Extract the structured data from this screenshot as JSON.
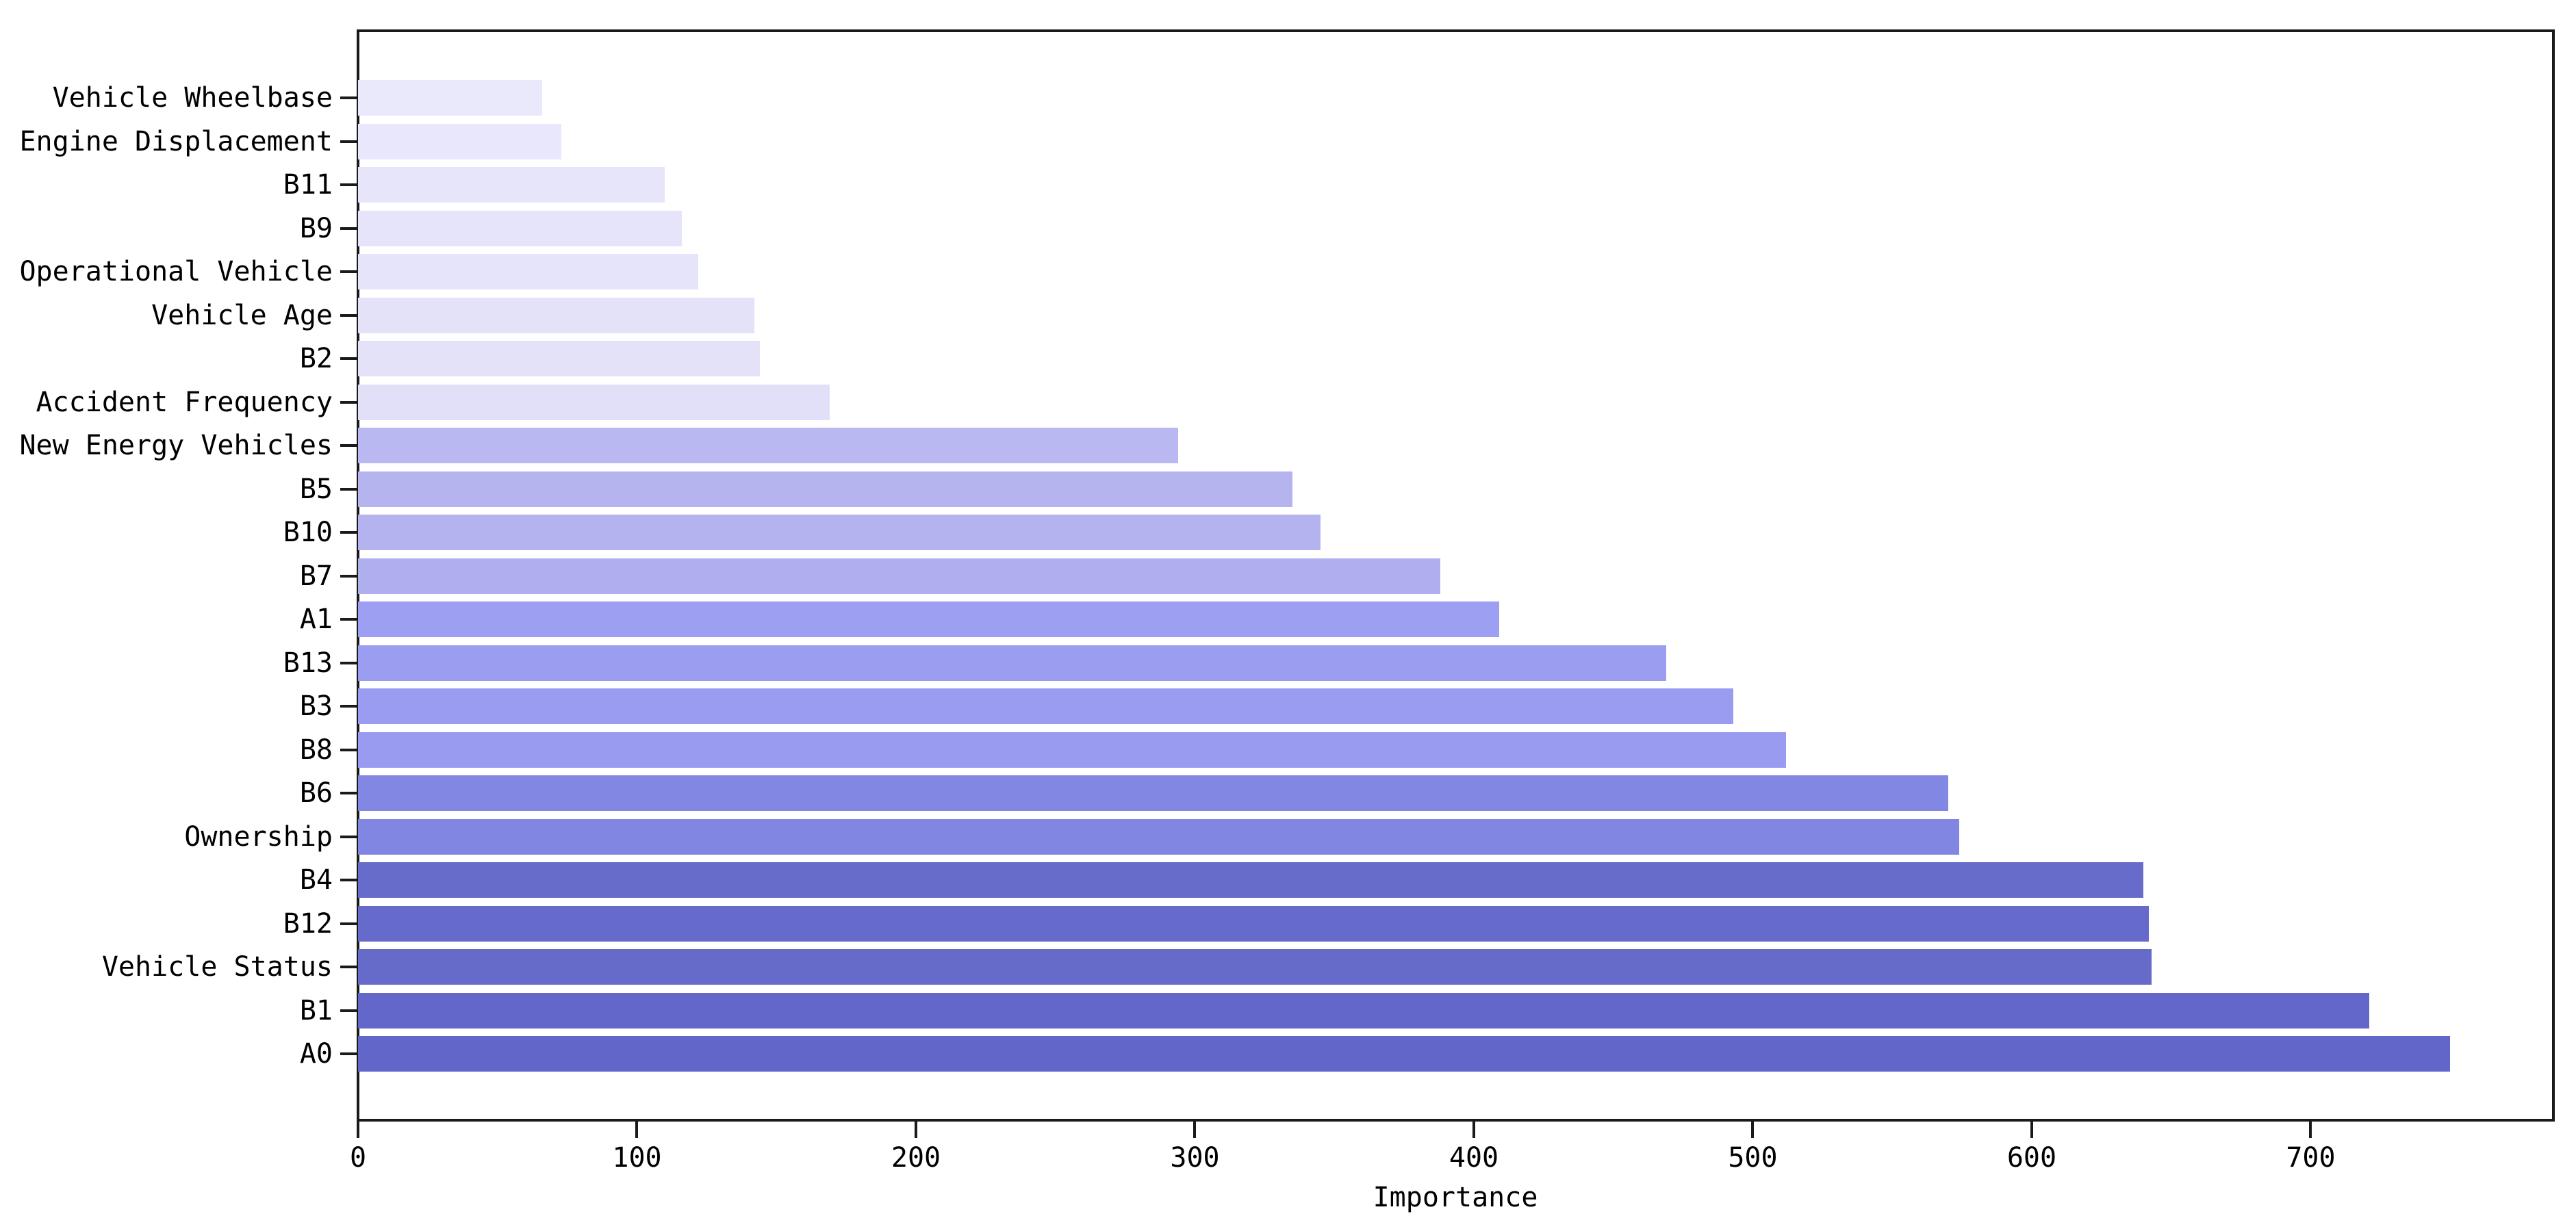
{
  "chart_data": {
    "type": "bar",
    "orientation": "horizontal",
    "title": "",
    "xlabel": "Importance",
    "ylabel": "",
    "xlim": [
      0,
      787
    ],
    "x_ticks": [
      0,
      100,
      200,
      300,
      400,
      500,
      600,
      700
    ],
    "grid": false,
    "legend": null,
    "categories": [
      "Vehicle Wheelbase",
      "Engine Displacement",
      "B11",
      "B9",
      "Operational Vehicle",
      "Vehicle Age",
      "B2",
      "Accident Frequency",
      "New Energy Vehicles",
      "B5",
      "B10",
      "B7",
      "A1",
      "B13",
      "B3",
      "B8",
      "B6",
      "Ownership",
      "B4",
      "B12",
      "Vehicle Status",
      "B1",
      "A0"
    ],
    "values": [
      66,
      73,
      110,
      116,
      122,
      142,
      144,
      169,
      294,
      335,
      345,
      388,
      409,
      469,
      493,
      512,
      570,
      574,
      640,
      642,
      643,
      721,
      750
    ],
    "bar_colors": [
      "#eae8fb",
      "#e9e7fb",
      "#e7e5fa",
      "#e6e4fa",
      "#e6e4fa",
      "#e4e2f9",
      "#e4e2f9",
      "#e2e0f8",
      "#b9b8f1",
      "#b5b4ef",
      "#b4b3ef",
      "#b0afee",
      "#9c9ff2",
      "#9a9df0",
      "#999cf0",
      "#989bef",
      "#8387e4",
      "#8286e3",
      "#676bca",
      "#666aca",
      "#666ac9",
      "#6367ca",
      "#6266c9"
    ],
    "spine_color": "#1a1a1a",
    "tick_color": "#1a1a1a",
    "text_color": "#000000",
    "background": "#ffffff"
  }
}
